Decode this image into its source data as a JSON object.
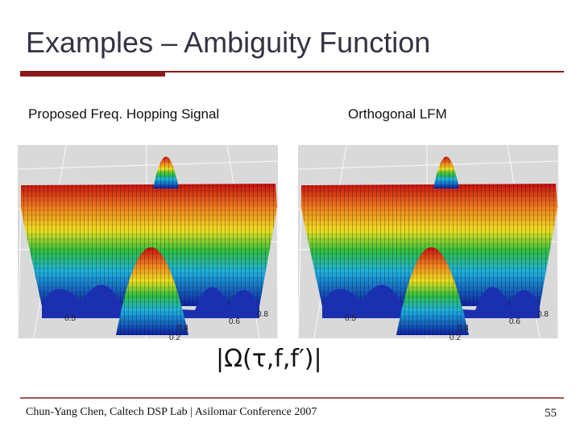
{
  "header": {
    "title": "Examples – Ambiguity Function"
  },
  "panels": [
    {
      "caption": "Proposed Freq. Hopping Signal",
      "axis_labels": [
        "0.5",
        "0.4",
        "0.6",
        "0.8",
        "0.2"
      ]
    },
    {
      "caption": "Orthogonal LFM",
      "axis_labels": [
        "0.5",
        "0.4",
        "0.6",
        "0.8",
        "0.2"
      ]
    }
  ],
  "formula": "|Ω(τ,f,f′)|",
  "footer": {
    "text": "Chun-Yang Chen, Caltech DSP Lab | Asilomar Conference 2007",
    "page": "55"
  }
}
